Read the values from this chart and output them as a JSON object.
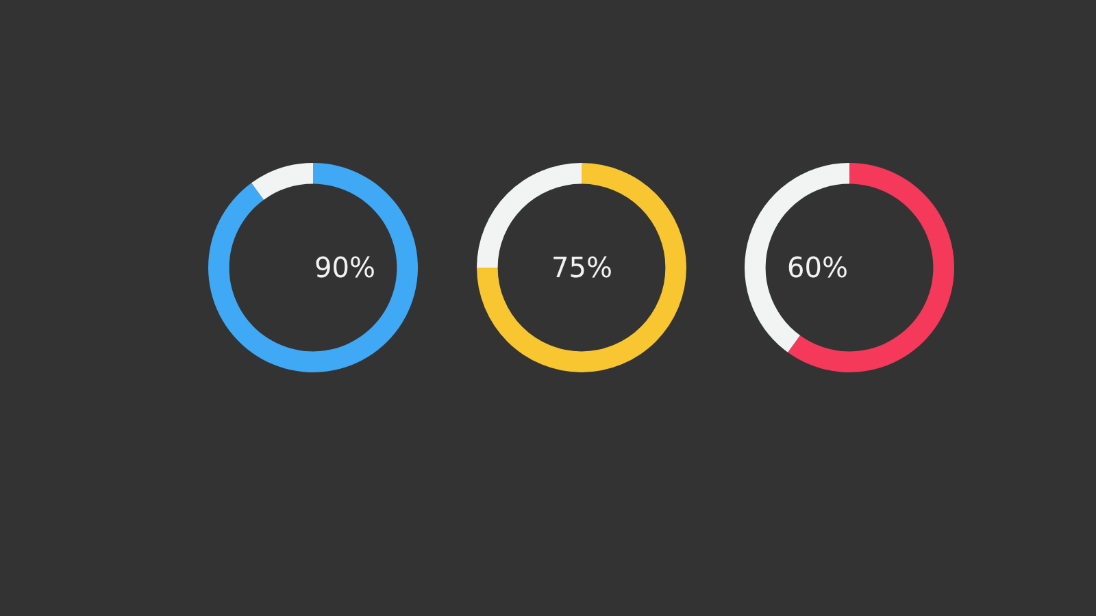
{
  "chart_data": [
    {
      "type": "donut",
      "categories": [
        null,
        null
      ],
      "values": [
        90,
        10
      ],
      "colors": [
        "#3fa9f5",
        "#f2f4f3"
      ],
      "annotations": [
        "90%"
      ]
    },
    {
      "type": "donut",
      "categories": [
        null,
        null
      ],
      "values": [
        75,
        25
      ],
      "colors": [
        "#f8c630",
        "#f2f4f3"
      ],
      "annotations": [
        "75%"
      ]
    },
    {
      "type": "donut",
      "categories": [
        null,
        null
      ],
      "values": [
        60,
        40
      ],
      "colors": [
        "#f4395a",
        "#f2f4f3"
      ],
      "annotations": [
        "60%"
      ]
    }
  ]
}
